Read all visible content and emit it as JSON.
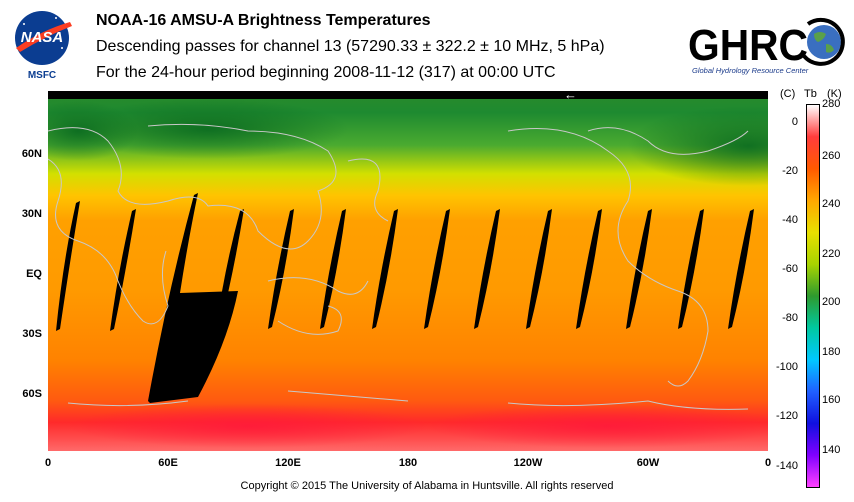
{
  "header": {
    "title": "NOAA-16 AMSU-A Brightness Temperatures",
    "subtitle": "Descending passes for channel 13 (57290.33 ± 322.2 ± 10 MHz, 5 hPa)",
    "period": "For the 24-hour period beginning 2008-11-12 (317) at 00:00 UTC"
  },
  "logos": {
    "nasa_label": "MSFC",
    "nasa_text": "NASA",
    "ghrc_text": "GHRC",
    "ghrc_tagline": "Global Hydrology Resource Center"
  },
  "map": {
    "lat_labels": [
      "60N",
      "30N",
      "EQ",
      "30S",
      "60S"
    ],
    "lon_labels": [
      "0",
      "60E",
      "120E",
      "180",
      "120W",
      "60W",
      "0"
    ],
    "arrow": "←"
  },
  "colorbar": {
    "unit_c": "(C)",
    "unit_tb": "Tb",
    "unit_k": "(K)",
    "celsius_ticks": [
      "0",
      "-20",
      "-40",
      "-60",
      "-80",
      "-100",
      "-120",
      "-140"
    ],
    "kelvin_ticks": [
      "280",
      "260",
      "240",
      "220",
      "200",
      "180",
      "160",
      "140"
    ],
    "colors": [
      "#ffffff",
      "#ff3c3c",
      "#ff5a00",
      "#ffa800",
      "#e8e000",
      "#a8d400",
      "#2e9a2e",
      "#00c8a0",
      "#00c8ff",
      "#2060ff",
      "#1010e0",
      "#8000ff",
      "#ff40ff"
    ]
  },
  "footer": {
    "copyright": "Copyright © 2015 The University of Alabama in Huntsville.  All rights reserved"
  }
}
